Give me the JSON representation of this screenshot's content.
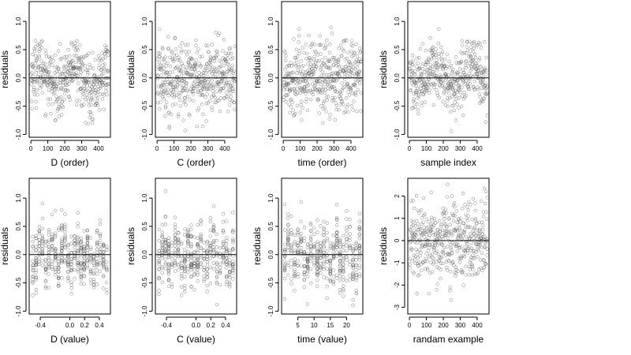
{
  "chart_data": [
    {
      "type": "scatter",
      "xlabel": "D (order)",
      "ylabel": "residuals",
      "xlim": [
        -10,
        470
      ],
      "ylim": [
        -1.05,
        1.35
      ],
      "xticks": [
        0,
        100,
        200,
        300,
        400
      ],
      "xtick_labels": [
        "0",
        "100",
        "200",
        "300",
        "400"
      ],
      "yticks": [
        -1.0,
        -0.5,
        0.0,
        0.5,
        1.0
      ],
      "ytick_labels": [
        "-1.0",
        "-0.5",
        "0.0",
        "0.5",
        "1.0"
      ],
      "hline": 0,
      "n_points": 460,
      "x_range": [
        1,
        460
      ],
      "y_range": [
        -0.95,
        1.25
      ],
      "pattern": "order-wave"
    },
    {
      "type": "scatter",
      "xlabel": "C (order)",
      "ylabel": "residuals",
      "xlim": [
        -10,
        470
      ],
      "ylim": [
        -1.05,
        1.35
      ],
      "xticks": [
        0,
        100,
        200,
        300,
        400
      ],
      "xtick_labels": [
        "0",
        "100",
        "200",
        "300",
        "400"
      ],
      "yticks": [
        -1.0,
        -0.5,
        0.0,
        0.5,
        1.0
      ],
      "ytick_labels": [
        "-1.0",
        "-0.5",
        "0.0",
        "0.5",
        "1.0"
      ],
      "hline": 0,
      "n_points": 460,
      "x_range": [
        1,
        460
      ],
      "y_range": [
        -0.95,
        1.25
      ],
      "pattern": "order-noise"
    },
    {
      "type": "scatter",
      "xlabel": "time (order)",
      "ylabel": "residuals",
      "xlim": [
        -10,
        470
      ],
      "ylim": [
        -1.05,
        1.35
      ],
      "xticks": [
        0,
        100,
        200,
        300,
        400
      ],
      "xtick_labels": [
        "0",
        "100",
        "200",
        "300",
        "400"
      ],
      "yticks": [
        -1.0,
        -0.5,
        0.0,
        0.5,
        1.0
      ],
      "ytick_labels": [
        "-1.0",
        "-0.5",
        "0.0",
        "0.5",
        "1.0"
      ],
      "hline": 0,
      "n_points": 460,
      "x_range": [
        1,
        460
      ],
      "y_range": [
        -0.95,
        1.25
      ],
      "pattern": "order-noise"
    },
    {
      "type": "scatter",
      "xlabel": "sample index",
      "ylabel": "residuals",
      "xlim": [
        -10,
        470
      ],
      "ylim": [
        -1.05,
        1.35
      ],
      "xticks": [
        0,
        100,
        200,
        300,
        400
      ],
      "xtick_labels": [
        "0",
        "100",
        "200",
        "300",
        "400"
      ],
      "yticks": [
        -1.0,
        -0.5,
        0.0,
        0.5,
        1.0
      ],
      "ytick_labels": [
        "-1.0",
        "-0.5",
        "0.0",
        "0.5",
        "1.0"
      ],
      "hline": 0,
      "n_points": 460,
      "x_range": [
        1,
        460
      ],
      "y_range": [
        -0.95,
        1.25
      ],
      "pattern": "order-wave"
    },
    {
      "type": "scatter",
      "xlabel": "D (value)",
      "ylabel": "residuals",
      "xlim": [
        -0.55,
        0.55
      ],
      "ylim": [
        -1.05,
        1.35
      ],
      "xticks": [
        -0.4,
        0.0,
        0.2,
        0.4
      ],
      "xtick_labels": [
        "-0.4",
        "0.0",
        "0.2",
        "0.4"
      ],
      "yticks": [
        -1.0,
        -0.5,
        0.0,
        0.5,
        1.0
      ],
      "ytick_labels": [
        "-1.0",
        "-0.5",
        "0.0",
        "0.5",
        "1.0"
      ],
      "hline": 0,
      "n_points": 460,
      "x_range": [
        -0.5,
        0.5
      ],
      "y_range": [
        -0.95,
        1.25
      ],
      "pattern": "value-columns"
    },
    {
      "type": "scatter",
      "xlabel": "C (value)",
      "ylabel": "residuals",
      "xlim": [
        -0.55,
        0.55
      ],
      "ylim": [
        -1.05,
        1.35
      ],
      "xticks": [
        -0.4,
        0.0,
        0.2,
        0.4
      ],
      "xtick_labels": [
        "-0.4",
        "0.0",
        "0.2",
        "0.4"
      ],
      "yticks": [
        -1.0,
        -0.5,
        0.0,
        0.5,
        1.0
      ],
      "ytick_labels": [
        "-1.0",
        "-0.5",
        "0.0",
        "0.5",
        "1.0"
      ],
      "hline": 0,
      "n_points": 460,
      "x_range": [
        -0.5,
        0.5
      ],
      "y_range": [
        -0.95,
        1.25
      ],
      "pattern": "value-columns"
    },
    {
      "type": "scatter",
      "xlabel": "time (value)",
      "ylabel": "residuals",
      "xlim": [
        0,
        25
      ],
      "ylim": [
        -1.05,
        1.35
      ],
      "xticks": [
        5,
        10,
        15,
        20
      ],
      "xtick_labels": [
        "5",
        "10",
        "15",
        "20"
      ],
      "yticks": [
        -1.0,
        -0.5,
        0.0,
        0.5,
        1.0
      ],
      "ytick_labels": [
        "-1.0",
        "-0.5",
        "0.0",
        "0.5",
        "1.0"
      ],
      "hline": 0,
      "n_points": 460,
      "x_range": [
        1,
        24
      ],
      "y_range": [
        -0.95,
        1.25
      ],
      "pattern": "value-columns"
    },
    {
      "type": "scatter",
      "xlabel": "randam example",
      "ylabel": "residuals",
      "xlim": [
        -10,
        470
      ],
      "ylim": [
        -3.3,
        2.8
      ],
      "xticks": [
        0,
        100,
        200,
        300,
        400
      ],
      "xtick_labels": [
        "0",
        "100",
        "200",
        "300",
        "400"
      ],
      "yticks": [
        -3,
        -2,
        -1,
        0,
        1,
        2
      ],
      "ytick_labels": [
        "-3",
        "-2",
        "-1",
        "0",
        "1",
        "2"
      ],
      "hline": 0,
      "n_points": 460,
      "x_range": [
        1,
        460
      ],
      "y_range": [
        -3.1,
        2.6
      ],
      "pattern": "order-noise"
    }
  ]
}
